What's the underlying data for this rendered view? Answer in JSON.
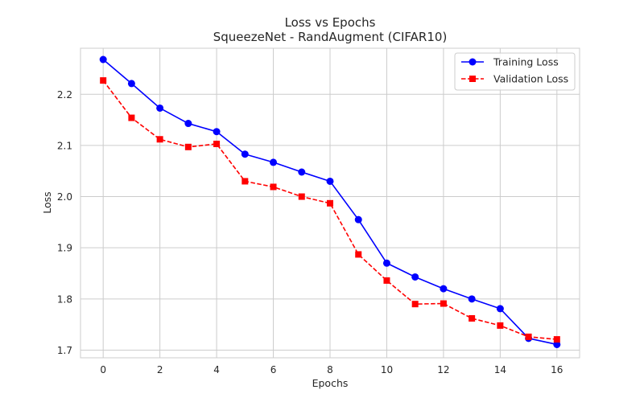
{
  "chart_data": {
    "type": "line",
    "title": "Loss vs Epochs",
    "subtitle": "SqueezeNet - RandAugment (CIFAR10)",
    "xlabel": "Epochs",
    "ylabel": "Loss",
    "xlim": [
      -0.8,
      16.8
    ],
    "ylim": [
      1.685,
      2.29
    ],
    "xticks": [
      0,
      2,
      4,
      6,
      8,
      10,
      12,
      14,
      16
    ],
    "yticks": [
      1.7,
      1.8,
      1.9,
      2.0,
      2.1,
      2.2
    ],
    "ytick_labels": [
      "1.7",
      "1.8",
      "1.9",
      "2.0",
      "2.1",
      "2.2"
    ],
    "grid": true,
    "legend_position": "top-right",
    "x": [
      0,
      1,
      2,
      3,
      4,
      5,
      6,
      7,
      8,
      9,
      10,
      11,
      12,
      13,
      14,
      15,
      16
    ],
    "series": [
      {
        "name": "Training Loss",
        "color": "#0000ff",
        "line_style": "solid",
        "marker": "circle",
        "values": [
          2.268,
          2.221,
          2.173,
          2.143,
          2.127,
          2.083,
          2.067,
          2.048,
          2.03,
          1.955,
          1.87,
          1.843,
          1.82,
          1.8,
          1.781,
          1.723,
          1.711
        ]
      },
      {
        "name": "Validation Loss",
        "color": "#ff0000",
        "line_style": "dashed",
        "marker": "square",
        "values": [
          2.227,
          2.154,
          2.112,
          2.097,
          2.103,
          2.03,
          2.019,
          2.0,
          1.987,
          1.887,
          1.836,
          1.79,
          1.791,
          1.762,
          1.748,
          1.726,
          1.721
        ]
      }
    ]
  }
}
